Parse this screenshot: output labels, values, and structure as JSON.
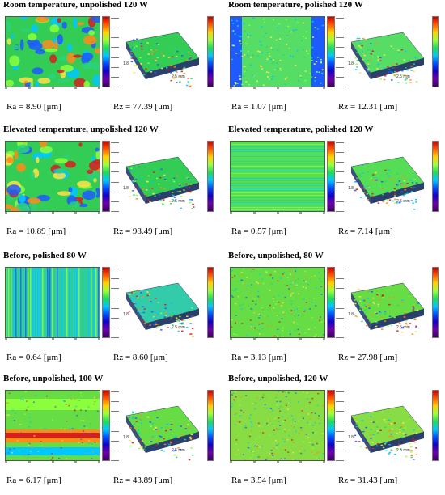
{
  "panels": [
    {
      "title": "Room temperature, unpolished 120 W",
      "ra": "Ra = 8.90 [μm]",
      "rz": "Rz = 77.39 [μm]",
      "style": "blobby",
      "base": "#33cc55"
    },
    {
      "title": "Room temperature, polished 120 W",
      "ra": "Ra = 1.07 [μm]",
      "rz": "Rz = 12.31 [μm]",
      "style": "polished",
      "base": "#55dd66"
    },
    {
      "title": "Elevated temperature, unpolished 120 W",
      "ra": "Ra = 10.89 [μm]",
      "rz": "Rz = 98.49 [μm]",
      "style": "blobby",
      "base": "#33cc55"
    },
    {
      "title": "Elevated temperature, polished 120 W",
      "ra": "Ra = 0.57 [μm]",
      "rz": "Rz = 7.14 [μm]",
      "style": "lines",
      "base": "#55dd55"
    },
    {
      "title": "Before, polished 80 W",
      "ra": "Ra = 0.64 [μm]",
      "rz": "Rz = 8.60 [μm]",
      "style": "vlines",
      "base": "#33ccaa"
    },
    {
      "title": "Before, unpolished, 80 W",
      "ra": "Ra = 3.13 [μm]",
      "rz": "Rz = 27.98 [μm]",
      "style": "speckle",
      "base": "#66dd44"
    },
    {
      "title": "Before, unpolished, 100 W",
      "ra": "Ra = 6.17 [μm]",
      "rz": "Rz = 43.89 [μm]",
      "style": "band",
      "base": "#66dd44"
    },
    {
      "title": "Before, unpolished, 120 W",
      "ra": "Ra = 3.54 [μm]",
      "rz": "Rz = 31.43 [μm]",
      "style": "speckle",
      "base": "#88dd44"
    }
  ],
  "view_label": "2.5 mm",
  "view_side_label": "1.8"
}
